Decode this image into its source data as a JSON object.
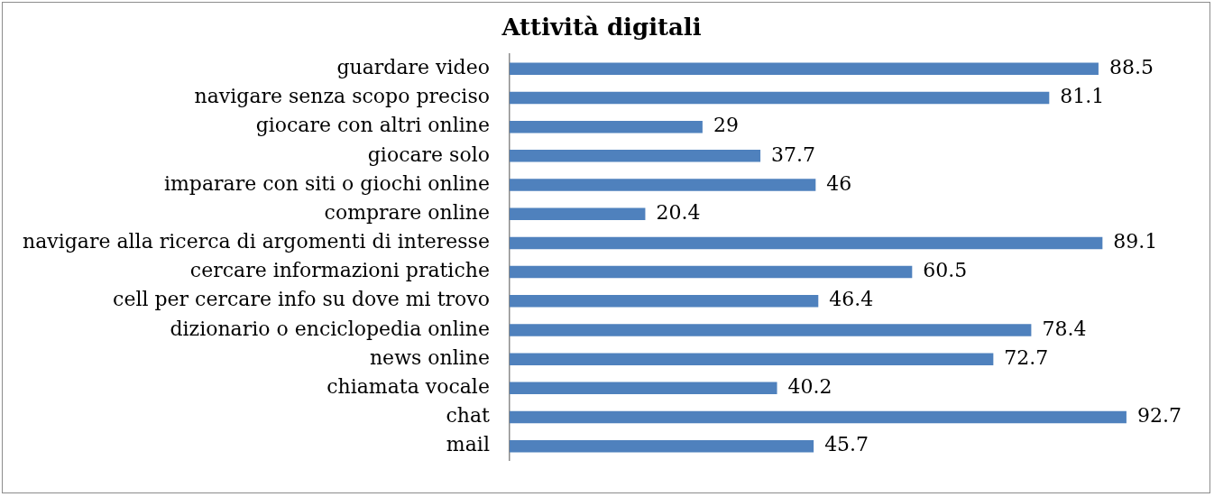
{
  "chart_data": {
    "type": "bar",
    "orientation": "horizontal",
    "title": "Attività digitali",
    "categories": [
      "guardare video",
      "navigare senza scopo preciso",
      "giocare con altri online",
      "giocare solo",
      "imparare con siti o giochi online",
      "comprare online",
      "navigare alla ricerca di argomenti di interesse",
      "cercare informazioni pratiche",
      "cell per cercare info su dove mi trovo",
      "dizionario o enciclopedia online",
      "news online",
      "chiamata vocale",
      "chat",
      "mail"
    ],
    "values": [
      88.5,
      81.1,
      29,
      37.7,
      46,
      20.4,
      89.1,
      60.5,
      46.4,
      78.4,
      72.7,
      40.2,
      92.7,
      45.7
    ],
    "color": "#4f81bd",
    "data_labels": true,
    "legend": false
  }
}
